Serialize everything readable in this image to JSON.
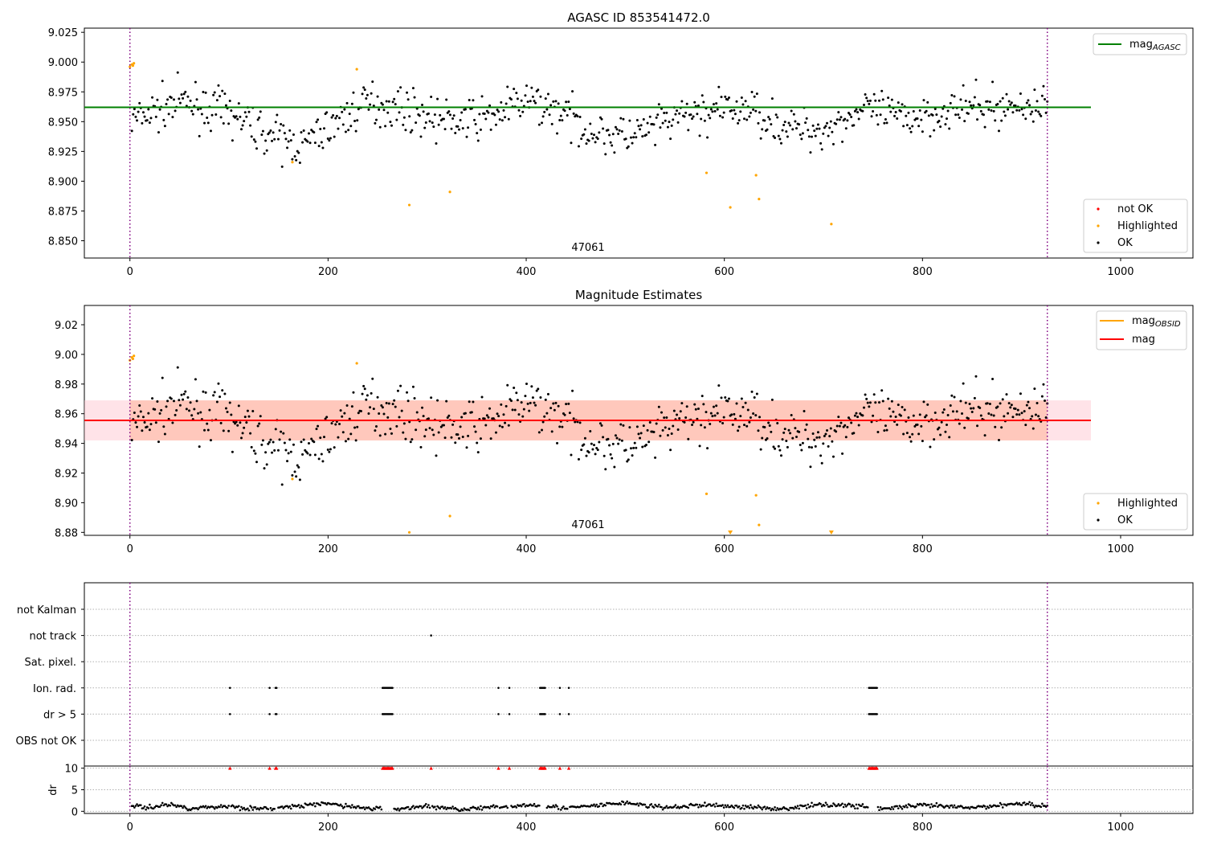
{
  "figure": {
    "top_title": "AGASC ID 853541472.0",
    "mid_title": "Magnitude Estimates",
    "obsid_label": "47061"
  },
  "legends": {
    "top_upper": {
      "mag_main": "mag",
      "mag_sub": "AGASC"
    },
    "top_lower": [
      "not OK",
      "Highlighted",
      "OK"
    ],
    "mid_upper": {
      "obsid_main": "mag",
      "obsid_sub": "OBSID",
      "mag": "mag"
    },
    "mid_lower": [
      "Highlighted",
      "OK"
    ]
  },
  "colors": {
    "ok": "#000000",
    "highlighted": "#ffa500",
    "not_ok": "#ff0000",
    "agasc_line": "#008000",
    "obsid_line": "#ffa500",
    "mag_line": "#ff0000",
    "band_pink": "#ffc0cb",
    "band_orange": "#ffa07a",
    "obs_boundary": "#800080"
  },
  "chart_data": [
    {
      "type": "scatter",
      "title": "AGASC ID 853541472.0",
      "xlim": [
        -46,
        1073
      ],
      "ylim": [
        8.8355,
        9.0285
      ],
      "xticks": [
        0,
        200,
        400,
        600,
        800,
        1000
      ],
      "yticks": [
        8.85,
        8.875,
        8.9,
        8.925,
        8.95,
        8.975,
        9.0,
        9.025
      ],
      "ytick_labels": [
        "8.850",
        "8.875",
        "8.900",
        "8.925",
        "8.950",
        "8.975",
        "9.000",
        "9.025"
      ],
      "grid": false,
      "hlines": [
        {
          "name": "mag AGASC",
          "y": 8.962,
          "x_range": [
            -46,
            970
          ],
          "color": "#008000"
        }
      ],
      "vlines": [
        0,
        926
      ],
      "highlighted_points": [
        [
          0,
          8.996
        ],
        [
          2,
          8.998
        ],
        [
          4,
          8.999
        ],
        [
          3,
          8.997
        ],
        [
          164,
          8.916
        ],
        [
          229,
          8.994
        ],
        [
          282,
          8.88
        ],
        [
          323,
          8.891
        ],
        [
          582,
          8.907
        ],
        [
          606,
          8.878
        ],
        [
          632,
          8.905
        ],
        [
          635,
          8.885
        ],
        [
          708,
          8.864
        ]
      ],
      "ok_series": {
        "n": 720,
        "x_start": 2,
        "x_end": 926,
        "trend": [
          [
            0,
            8.95
          ],
          [
            50,
            8.967
          ],
          [
            100,
            8.957
          ],
          [
            150,
            8.935
          ],
          [
            175,
            8.93
          ],
          [
            200,
            8.945
          ],
          [
            240,
            8.966
          ],
          [
            270,
            8.962
          ],
          [
            320,
            8.95
          ],
          [
            355,
            8.952
          ],
          [
            400,
            8.967
          ],
          [
            430,
            8.96
          ],
          [
            470,
            8.94
          ],
          [
            510,
            8.938
          ],
          [
            560,
            8.955
          ],
          [
            600,
            8.96
          ],
          [
            630,
            8.96
          ],
          [
            660,
            8.945
          ],
          [
            700,
            8.943
          ],
          [
            740,
            8.96
          ],
          [
            780,
            8.953
          ],
          [
            830,
            8.96
          ],
          [
            926,
            8.964
          ]
        ]
      },
      "legend": [
        "mag AGASC",
        "not OK",
        "Highlighted",
        "OK"
      ],
      "legend_loc": [
        "upper right",
        "lower right"
      ]
    },
    {
      "type": "scatter",
      "title": "Magnitude Estimates",
      "xlim": [
        -46,
        1073
      ],
      "ylim": [
        8.878,
        9.033
      ],
      "xticks": [
        0,
        200,
        400,
        600,
        800,
        1000
      ],
      "yticks": [
        8.88,
        8.9,
        8.92,
        8.94,
        8.96,
        8.98,
        9.0,
        9.02
      ],
      "ytick_labels": [
        "8.88",
        "8.90",
        "8.92",
        "8.94",
        "8.96",
        "8.98",
        "9.00",
        "9.02"
      ],
      "grid": false,
      "hlines": [
        {
          "name": "mag",
          "y": 8.9555,
          "x_range": [
            -46,
            970
          ],
          "color": "#ff0000"
        }
      ],
      "bands": [
        {
          "y_range": [
            8.942,
            8.969
          ],
          "x_range": [
            -46,
            970
          ]
        }
      ],
      "vlines": [
        0,
        926
      ],
      "highlighted_points": [
        [
          0,
          8.996
        ],
        [
          2,
          8.998
        ],
        [
          4,
          8.999
        ],
        [
          3,
          8.997
        ],
        [
          164,
          8.916
        ],
        [
          229,
          8.994
        ],
        [
          282,
          8.88
        ],
        [
          323,
          8.891
        ],
        [
          582,
          8.906
        ],
        [
          632,
          8.905
        ],
        [
          635,
          8.885
        ]
      ],
      "highlighted_below_range": [
        606,
        708
      ],
      "legend": [
        "mag OBSID",
        "mag",
        "Highlighted",
        "OK"
      ],
      "legend_loc": [
        "upper right",
        "lower right"
      ]
    },
    {
      "type": "scatter",
      "title": "",
      "xlim": [
        -46,
        1073
      ],
      "xticks": [
        0,
        200,
        400,
        600,
        800,
        1000
      ],
      "categories": [
        "not Kalman",
        "not track",
        "Sat. pixel.",
        "Ion. rad.",
        "dr > 5",
        "OBS not OK"
      ],
      "grid": "horizontal dotted",
      "flag_points": {
        "not track": [
          304
        ],
        "Ion. rad.": [
          101,
          141,
          147,
          148,
          255,
          256,
          257,
          258,
          259,
          260,
          261,
          262,
          263,
          264,
          265,
          372,
          383,
          414,
          415,
          416,
          417,
          418,
          419,
          434,
          443,
          746,
          747,
          748,
          749,
          750,
          751,
          752,
          753,
          754
        ],
        "dr > 5": [
          101,
          141,
          147,
          148,
          255,
          256,
          257,
          258,
          259,
          260,
          261,
          262,
          263,
          264,
          265,
          372,
          383,
          414,
          415,
          416,
          417,
          418,
          419,
          434,
          443,
          746,
          747,
          748,
          749,
          750,
          751,
          752,
          753,
          754
        ]
      },
      "vlines": [
        0,
        926
      ]
    },
    {
      "type": "scatter",
      "title": "",
      "xlim": [
        -46,
        1073
      ],
      "ylim": [
        -0.5,
        10.5
      ],
      "xticks": [
        0,
        200,
        400,
        600,
        800,
        1000
      ],
      "yticks": [
        0,
        5,
        10
      ],
      "ylabel": "dr",
      "clipped_at_10": [
        101,
        141,
        147,
        148,
        255,
        256,
        257,
        258,
        259,
        260,
        261,
        262,
        263,
        264,
        265,
        304,
        372,
        383,
        414,
        415,
        416,
        417,
        418,
        419,
        434,
        443,
        746,
        747,
        748,
        749,
        750,
        751,
        752,
        753,
        754
      ],
      "dr_trend": [
        [
          0,
          1.6
        ],
        [
          15,
          0.8
        ],
        [
          40,
          1.6
        ],
        [
          60,
          0.7
        ],
        [
          100,
          1.2
        ],
        [
          130,
          0.5
        ],
        [
          160,
          1.0
        ],
        [
          200,
          1.8
        ],
        [
          230,
          0.9
        ],
        [
          260,
          0.4
        ],
        [
          300,
          1.2
        ],
        [
          330,
          0.5
        ],
        [
          370,
          0.9
        ],
        [
          410,
          1.6
        ],
        [
          440,
          0.7
        ],
        [
          470,
          1.3
        ],
        [
          500,
          2.0
        ],
        [
          540,
          0.8
        ],
        [
          580,
          1.5
        ],
        [
          620,
          1.0
        ],
        [
          660,
          0.6
        ],
        [
          700,
          1.6
        ],
        [
          740,
          1.2
        ],
        [
          760,
          0.6
        ],
        [
          800,
          1.4
        ],
        [
          850,
          0.8
        ],
        [
          900,
          1.9
        ],
        [
          926,
          1.1
        ]
      ],
      "vlines": [
        0,
        926
      ]
    }
  ]
}
